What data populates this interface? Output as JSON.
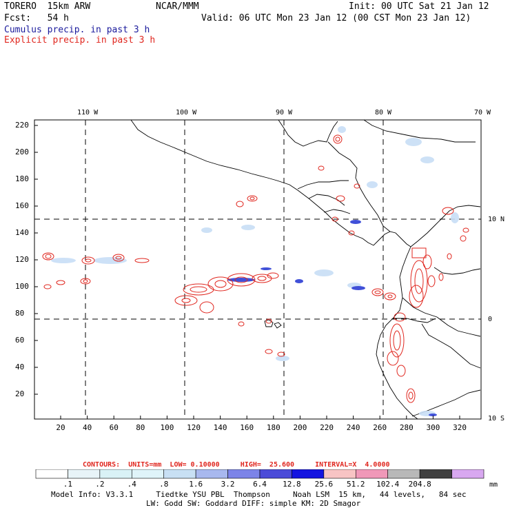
{
  "header": {
    "model": "TORERO  15km ARW",
    "center": "NCAR/MMM",
    "init": "Init: 00 UTC Sat 21 Jan 12",
    "fcst": "Fcst:   54 h",
    "valid": "Valid: 06 UTC Mon 23 Jan 12 (00 CST Mon 23 Jan 12)",
    "legend_cumulus": "Cumulus precip. in past 3 h",
    "legend_explicit": "Explicit precip. in past 3 h"
  },
  "map": {
    "lon_labels": [
      "110 W",
      "100 W",
      "90 W",
      "80 W",
      "70 W"
    ],
    "lat_labels": [
      "10 N",
      "0",
      "10 S"
    ],
    "y_ticks": [
      "220",
      "200",
      "180",
      "160",
      "140",
      "120",
      "100",
      "80",
      "60",
      "40",
      "20"
    ],
    "x_ticks": [
      "20",
      "40",
      "60",
      "80",
      "100",
      "120",
      "140",
      "160",
      "180",
      "200",
      "220",
      "240",
      "260",
      "280",
      "300",
      "320"
    ]
  },
  "contours": {
    "label": "CONTOURS:  UNITS=mm  LOW= 0.10000     HIGH=  25.600     INTERVAL=X  4.0000"
  },
  "colorbar": {
    "colors": [
      "#ffffff",
      "#e8f4f8",
      "#d9f2f6",
      "#dff4f9",
      "#c8e0f4",
      "#a8b8ee",
      "#7c84e8",
      "#4b4bd8",
      "#1414e0",
      "#f8c4c4",
      "#f098b8",
      "#b8b8b8",
      "#404040",
      "#d8a8f0"
    ],
    "labels": [
      ".1",
      ".2",
      ".4",
      ".8",
      "1.6",
      "3.2",
      "6.4",
      "12.8",
      "25.6",
      "51.2",
      "102.4",
      "204.8"
    ],
    "unit": "mm"
  },
  "footer": {
    "line1": "Model Info: V3.3.1     Tiedtke YSU PBL  Thompson     Noah LSM  15 km,   44 levels,   84 sec",
    "line2": "LW: Godd SW: Goddard DIFF: simple KM: 2D Smagor"
  }
}
